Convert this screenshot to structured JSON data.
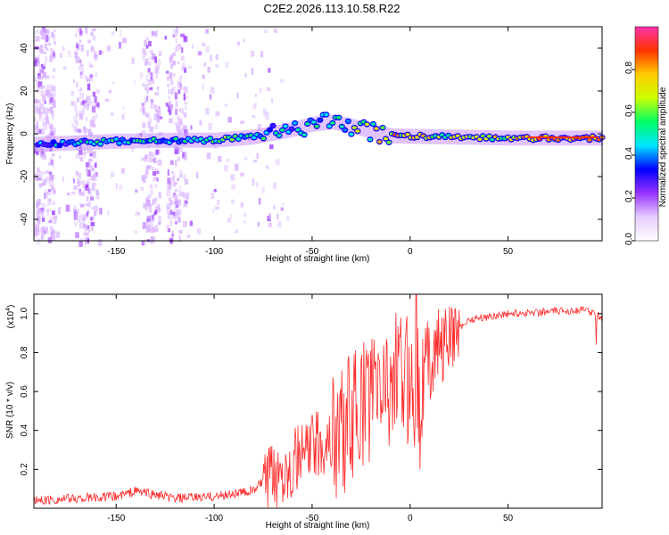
{
  "title": "C2E2.2026.113.10.58.R22",
  "chart_data": [
    {
      "type": "heatmap",
      "name": "spectrogram",
      "xlabel": "Height of straight line (km)",
      "ylabel": "Frequency (Hz)",
      "xlim": [
        -192,
        98
      ],
      "ylim": [
        -50,
        50
      ],
      "xticks": [
        -150,
        -100,
        -50,
        0,
        50
      ],
      "yticks": [
        -40,
        -20,
        0,
        20,
        40
      ],
      "colorbar": {
        "label": "Normalized spectral amplitude",
        "range": [
          0,
          1
        ],
        "ticks": [
          0.0,
          0.2,
          0.4,
          0.6,
          0.8
        ],
        "tick_labels": [
          "0.0",
          "0.2",
          "0.4",
          "0.6",
          "0.8"
        ],
        "colors": [
          "#ffffff",
          "#e6ccff",
          "#9933ff",
          "#0000ff",
          "#00e5ff",
          "#00ff66",
          "#ccff00",
          "#ffcc00",
          "#ff3300",
          "#ff33aa"
        ]
      },
      "ridge": {
        "x": [
          -192,
          -150,
          -120,
          -100,
          -80,
          -60,
          -50,
          -40,
          -30,
          -20,
          -10,
          0,
          20,
          50,
          80,
          98
        ],
        "freq": [
          -5,
          -3.5,
          -3,
          -3,
          -1.5,
          2,
          4.5,
          5.5,
          3.5,
          1,
          -1,
          -1.2,
          -1.5,
          -2,
          -2,
          -2
        ],
        "amplitude": [
          0.35,
          0.45,
          0.45,
          0.55,
          0.45,
          0.4,
          0.45,
          0.5,
          0.55,
          0.6,
          0.75,
          0.7,
          0.6,
          0.7,
          0.85,
          0.8
        ]
      }
    },
    {
      "type": "line",
      "name": "snr",
      "xlabel": "Height of straight line (km)",
      "ylabel": "SNR (10 * v/v)",
      "y_multiplier": "(x10",
      "y_multiplier_exp": "4",
      "y_multiplier_close": ")",
      "xlim": [
        -192,
        98
      ],
      "ylim": [
        0,
        1.1
      ],
      "xticks": [
        -150,
        -100,
        -50,
        0,
        50
      ],
      "yticks": [
        0.2,
        0.4,
        0.6,
        0.8,
        1.0
      ],
      "ytick_labels": [
        "0.2",
        "0.4",
        "0.6",
        "0.8",
        "1.0"
      ],
      "color": "#ff2b2b",
      "envelope": {
        "x": [
          -192,
          -150,
          -140,
          -120,
          -100,
          -80,
          -70,
          -60,
          -50,
          -40,
          -30,
          -20,
          -10,
          0,
          5,
          10,
          20,
          30,
          50,
          70,
          90,
          98
        ],
        "y": [
          0.03,
          0.05,
          0.08,
          0.04,
          0.05,
          0.08,
          0.18,
          0.25,
          0.33,
          0.38,
          0.5,
          0.62,
          0.7,
          0.7,
          0.65,
          0.82,
          0.88,
          0.97,
          1.0,
          1.01,
          1.02,
          0.98
        ]
      }
    }
  ]
}
